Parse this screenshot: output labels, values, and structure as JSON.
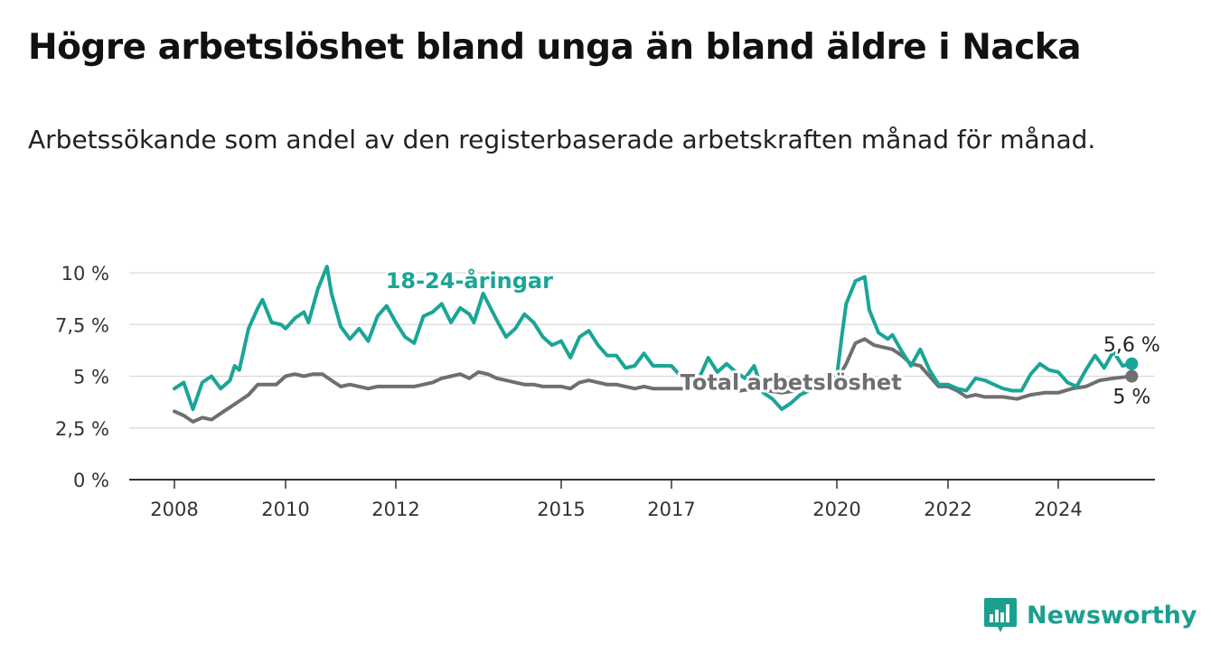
{
  "title": "Högre arbetslöshet bland unga än bland äldre i Nacka",
  "subtitle": "Arbetssökande som andel av den registerbaserade arbetskraften månad för månad.",
  "brand": {
    "name": "Newsworthy",
    "logo_icon": "newsworthy-chart-logo-icon"
  },
  "colors": {
    "youth": "#1aa596",
    "total": "#6f6f6f",
    "grid": "#d9d9d9",
    "axis": "#333333",
    "brand": "#1b9f8e"
  },
  "chart_data": {
    "type": "line",
    "title": "Högre arbetslöshet bland unga än bland äldre i Nacka",
    "subtitle": "Arbetssökande som andel av den registerbaserade arbetskraften månad för månad.",
    "xlabel": "",
    "ylabel": "",
    "x_domain": [
      "2008-01",
      "2025-10"
    ],
    "ylim": [
      0,
      10
    ],
    "y_ticks": [
      {
        "value": 0,
        "label": "0 %"
      },
      {
        "value": 2.5,
        "label": "2,5 %"
      },
      {
        "value": 5,
        "label": "5 %"
      },
      {
        "value": 7.5,
        "label": "7,5 %"
      },
      {
        "value": 10,
        "label": "10 %"
      }
    ],
    "x_ticks": [
      {
        "value": "2008-01",
        "label": "2008"
      },
      {
        "value": "2010-01",
        "label": "2010"
      },
      {
        "value": "2012-01",
        "label": "2012"
      },
      {
        "value": "2015-01",
        "label": "2015"
      },
      {
        "value": "2017-01",
        "label": "2017"
      },
      {
        "value": "2020-01",
        "label": "2020"
      },
      {
        "value": "2022-01",
        "label": "2022"
      },
      {
        "value": "2024-01",
        "label": "2024"
      }
    ],
    "grid": true,
    "series": [
      {
        "name": "18-24-åringar",
        "label_date": "2013-05",
        "label_value": 9.6,
        "end_label": "5,6 %",
        "points": [
          [
            "2008-01",
            4.4
          ],
          [
            "2008-03",
            4.7
          ],
          [
            "2008-05",
            3.4
          ],
          [
            "2008-07",
            4.7
          ],
          [
            "2008-09",
            5.0
          ],
          [
            "2008-11",
            4.4
          ],
          [
            "2009-01",
            4.8
          ],
          [
            "2009-02",
            5.5
          ],
          [
            "2009-03",
            5.3
          ],
          [
            "2009-05",
            7.3
          ],
          [
            "2009-07",
            8.3
          ],
          [
            "2009-08",
            8.7
          ],
          [
            "2009-10",
            7.6
          ],
          [
            "2009-12",
            7.5
          ],
          [
            "2010-01",
            7.3
          ],
          [
            "2010-03",
            7.8
          ],
          [
            "2010-05",
            8.1
          ],
          [
            "2010-06",
            7.6
          ],
          [
            "2010-08",
            9.2
          ],
          [
            "2010-10",
            10.3
          ],
          [
            "2010-11",
            9.0
          ],
          [
            "2011-01",
            7.4
          ],
          [
            "2011-03",
            6.8
          ],
          [
            "2011-05",
            7.3
          ],
          [
            "2011-07",
            6.7
          ],
          [
            "2011-09",
            7.9
          ],
          [
            "2011-11",
            8.4
          ],
          [
            "2012-01",
            7.6
          ],
          [
            "2012-03",
            6.9
          ],
          [
            "2012-05",
            6.6
          ],
          [
            "2012-07",
            7.9
          ],
          [
            "2012-09",
            8.1
          ],
          [
            "2012-11",
            8.5
          ],
          [
            "2013-01",
            7.6
          ],
          [
            "2013-03",
            8.3
          ],
          [
            "2013-05",
            8.0
          ],
          [
            "2013-06",
            7.6
          ],
          [
            "2013-08",
            9.0
          ],
          [
            "2013-11",
            7.7
          ],
          [
            "2014-01",
            6.9
          ],
          [
            "2014-03",
            7.3
          ],
          [
            "2014-05",
            8.0
          ],
          [
            "2014-07",
            7.6
          ],
          [
            "2014-09",
            6.9
          ],
          [
            "2014-11",
            6.5
          ],
          [
            "2015-01",
            6.7
          ],
          [
            "2015-03",
            5.9
          ],
          [
            "2015-05",
            6.9
          ],
          [
            "2015-07",
            7.2
          ],
          [
            "2015-09",
            6.5
          ],
          [
            "2015-11",
            6.0
          ],
          [
            "2016-01",
            6.0
          ],
          [
            "2016-03",
            5.4
          ],
          [
            "2016-05",
            5.5
          ],
          [
            "2016-07",
            6.1
          ],
          [
            "2016-09",
            5.5
          ],
          [
            "2016-11",
            5.5
          ],
          [
            "2017-01",
            5.5
          ],
          [
            "2017-03",
            5.0
          ],
          [
            "2017-05",
            5.1
          ],
          [
            "2017-07",
            4.9
          ],
          [
            "2017-09",
            5.9
          ],
          [
            "2017-11",
            5.2
          ],
          [
            "2018-01",
            5.6
          ],
          [
            "2018-03",
            5.2
          ],
          [
            "2018-05",
            4.9
          ],
          [
            "2018-07",
            5.5
          ],
          [
            "2018-09",
            4.2
          ],
          [
            "2018-11",
            3.9
          ],
          [
            "2019-01",
            3.4
          ],
          [
            "2019-03",
            3.7
          ],
          [
            "2019-05",
            4.1
          ],
          [
            "2019-07",
            4.3
          ],
          [
            "2019-09",
            4.4
          ],
          [
            "2019-11",
            4.8
          ],
          [
            "2020-01",
            5.0
          ],
          [
            "2020-02",
            6.8
          ],
          [
            "2020-03",
            8.5
          ],
          [
            "2020-05",
            9.6
          ],
          [
            "2020-07",
            9.8
          ],
          [
            "2020-08",
            8.2
          ],
          [
            "2020-10",
            7.1
          ],
          [
            "2020-12",
            6.8
          ],
          [
            "2021-01",
            7.0
          ],
          [
            "2021-03",
            6.2
          ],
          [
            "2021-05",
            5.5
          ],
          [
            "2021-07",
            6.3
          ],
          [
            "2021-09",
            5.3
          ],
          [
            "2021-11",
            4.6
          ],
          [
            "2022-01",
            4.6
          ],
          [
            "2022-03",
            4.4
          ],
          [
            "2022-05",
            4.3
          ],
          [
            "2022-07",
            4.9
          ],
          [
            "2022-09",
            4.8
          ],
          [
            "2022-11",
            4.6
          ],
          [
            "2023-01",
            4.4
          ],
          [
            "2023-03",
            4.3
          ],
          [
            "2023-05",
            4.3
          ],
          [
            "2023-07",
            5.1
          ],
          [
            "2023-09",
            5.6
          ],
          [
            "2023-11",
            5.3
          ],
          [
            "2024-01",
            5.2
          ],
          [
            "2024-03",
            4.7
          ],
          [
            "2024-05",
            4.5
          ],
          [
            "2024-07",
            5.3
          ],
          [
            "2024-09",
            6.0
          ],
          [
            "2024-11",
            5.4
          ],
          [
            "2025-01",
            6.2
          ],
          [
            "2025-03",
            5.5
          ],
          [
            "2025-05",
            5.6
          ]
        ]
      },
      {
        "name": "Total arbetslöshet",
        "label_date": "2019-03",
        "label_value": 4.7,
        "end_label": "5 %",
        "points": [
          [
            "2008-01",
            3.3
          ],
          [
            "2008-03",
            3.1
          ],
          [
            "2008-05",
            2.8
          ],
          [
            "2008-07",
            3.0
          ],
          [
            "2008-09",
            2.9
          ],
          [
            "2008-11",
            3.2
          ],
          [
            "2009-01",
            3.5
          ],
          [
            "2009-03",
            3.8
          ],
          [
            "2009-05",
            4.1
          ],
          [
            "2009-07",
            4.6
          ],
          [
            "2009-09",
            4.6
          ],
          [
            "2009-11",
            4.6
          ],
          [
            "2010-01",
            5.0
          ],
          [
            "2010-03",
            5.1
          ],
          [
            "2010-05",
            5.0
          ],
          [
            "2010-07",
            5.1
          ],
          [
            "2010-09",
            5.1
          ],
          [
            "2010-11",
            4.8
          ],
          [
            "2011-01",
            4.5
          ],
          [
            "2011-03",
            4.6
          ],
          [
            "2011-05",
            4.5
          ],
          [
            "2011-07",
            4.4
          ],
          [
            "2011-09",
            4.5
          ],
          [
            "2011-11",
            4.5
          ],
          [
            "2012-01",
            4.5
          ],
          [
            "2012-03",
            4.5
          ],
          [
            "2012-05",
            4.5
          ],
          [
            "2012-07",
            4.6
          ],
          [
            "2012-09",
            4.7
          ],
          [
            "2012-11",
            4.9
          ],
          [
            "2013-01",
            5.0
          ],
          [
            "2013-03",
            5.1
          ],
          [
            "2013-05",
            4.9
          ],
          [
            "2013-07",
            5.2
          ],
          [
            "2013-09",
            5.1
          ],
          [
            "2013-11",
            4.9
          ],
          [
            "2014-01",
            4.8
          ],
          [
            "2014-03",
            4.7
          ],
          [
            "2014-05",
            4.6
          ],
          [
            "2014-07",
            4.6
          ],
          [
            "2014-09",
            4.5
          ],
          [
            "2014-11",
            4.5
          ],
          [
            "2015-01",
            4.5
          ],
          [
            "2015-03",
            4.4
          ],
          [
            "2015-05",
            4.7
          ],
          [
            "2015-07",
            4.8
          ],
          [
            "2015-09",
            4.7
          ],
          [
            "2015-11",
            4.6
          ],
          [
            "2016-01",
            4.6
          ],
          [
            "2016-03",
            4.5
          ],
          [
            "2016-05",
            4.4
          ],
          [
            "2016-07",
            4.5
          ],
          [
            "2016-09",
            4.4
          ],
          [
            "2016-11",
            4.4
          ],
          [
            "2017-01",
            4.4
          ],
          [
            "2017-04",
            4.4
          ],
          [
            "2017-07",
            4.5
          ],
          [
            "2017-10",
            4.5
          ],
          [
            "2018-01",
            4.4
          ],
          [
            "2018-04",
            4.3
          ],
          [
            "2018-07",
            4.4
          ],
          [
            "2018-10",
            4.3
          ],
          [
            "2019-01",
            4.2
          ],
          [
            "2019-04",
            4.3
          ],
          [
            "2019-07",
            4.4
          ],
          [
            "2019-10",
            4.6
          ],
          [
            "2020-01",
            4.8
          ],
          [
            "2020-03",
            5.6
          ],
          [
            "2020-05",
            6.6
          ],
          [
            "2020-07",
            6.8
          ],
          [
            "2020-09",
            6.5
          ],
          [
            "2020-11",
            6.4
          ],
          [
            "2021-01",
            6.3
          ],
          [
            "2021-03",
            6.0
          ],
          [
            "2021-05",
            5.6
          ],
          [
            "2021-07",
            5.5
          ],
          [
            "2021-09",
            5.0
          ],
          [
            "2021-11",
            4.5
          ],
          [
            "2022-01",
            4.5
          ],
          [
            "2022-03",
            4.3
          ],
          [
            "2022-05",
            4.0
          ],
          [
            "2022-07",
            4.1
          ],
          [
            "2022-09",
            4.0
          ],
          [
            "2022-11",
            4.0
          ],
          [
            "2023-01",
            4.0
          ],
          [
            "2023-04",
            3.9
          ],
          [
            "2023-07",
            4.1
          ],
          [
            "2023-10",
            4.2
          ],
          [
            "2024-01",
            4.2
          ],
          [
            "2024-04",
            4.4
          ],
          [
            "2024-07",
            4.5
          ],
          [
            "2024-10",
            4.8
          ],
          [
            "2025-01",
            4.9
          ],
          [
            "2025-05",
            5.0
          ]
        ]
      }
    ]
  }
}
